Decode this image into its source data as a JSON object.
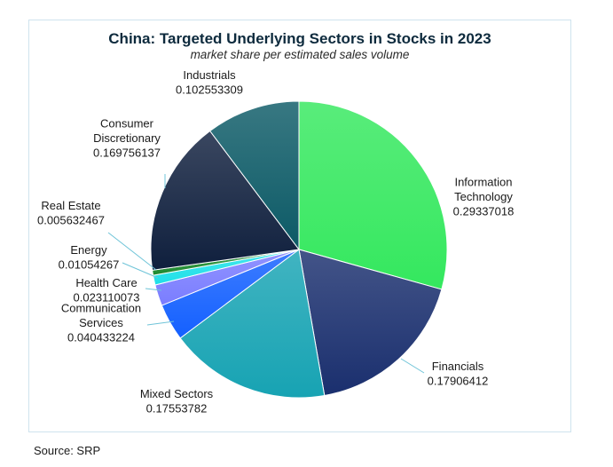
{
  "chart_data": {
    "type": "pie",
    "title": "China: Targeted Underlying Sectors in Stocks in 2023",
    "subtitle": "market share per estimated sales volume",
    "start": "12 o'clock, clockwise",
    "slices": [
      {
        "name": "Information Technology",
        "label_lines": [
          "Information",
          "Technology"
        ],
        "value": 0.29337018,
        "value_text": "0.29337018",
        "color": "#34e85e"
      },
      {
        "name": "Financials",
        "label_lines": [
          "Financials"
        ],
        "value": 0.17906412,
        "value_text": "0.17906412",
        "color": "#1a2f6e"
      },
      {
        "name": "Mixed Sectors",
        "label_lines": [
          "Mixed Sectors"
        ],
        "value": 0.17553782,
        "value_text": "0.17553782",
        "color": "#17a3b3"
      },
      {
        "name": "Communication Services",
        "label_lines": [
          "Communication",
          "Services"
        ],
        "value": 0.040433224,
        "value_text": "0.040433224",
        "color": "#1460ff"
      },
      {
        "name": "Health Care",
        "label_lines": [
          "Health Care"
        ],
        "value": 0.023110073,
        "value_text": "0.023110073",
        "color": "#7a7dff"
      },
      {
        "name": "Energy",
        "label_lines": [
          "Energy"
        ],
        "value": 0.01054267,
        "value_text": "0.01054267",
        "color": "#1fe0e8"
      },
      {
        "name": "Real Estate",
        "label_lines": [
          "Real Estate"
        ],
        "value": 0.005632467,
        "value_text": "0.005632467",
        "color": "#1c8a2e"
      },
      {
        "name": "Consumer Discretionary",
        "label_lines": [
          "Consumer",
          "Discretionary"
        ],
        "value": 0.169756137,
        "value_text": "0.169756137",
        "color": "#0f1f3d"
      },
      {
        "name": "Industrials",
        "label_lines": [
          "Industrials"
        ],
        "value": 0.102553309,
        "value_text": "0.102553309",
        "color": "#0c5a66"
      }
    ]
  },
  "footer": {
    "source": "Source: SRP"
  }
}
